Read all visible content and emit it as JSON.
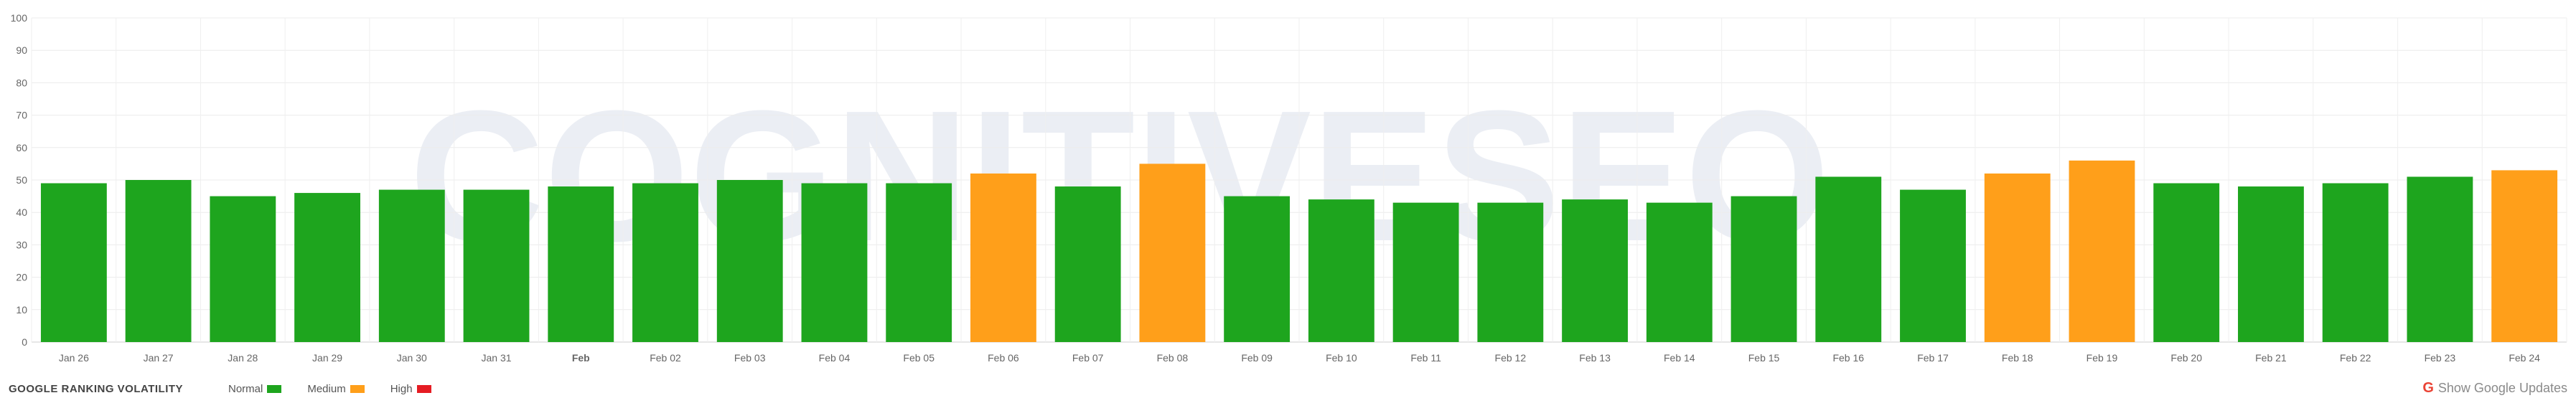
{
  "chart_data": {
    "type": "bar",
    "title": "GOOGLE RANKING VOLATILITY",
    "xlabel": "",
    "ylabel": "",
    "ylim": [
      0,
      100
    ],
    "yticks": [
      0,
      10,
      20,
      30,
      40,
      50,
      60,
      70,
      80,
      90,
      100
    ],
    "grid": true,
    "watermark": "COGNITIVESEO",
    "categories": [
      "Jan 26",
      "Jan 27",
      "Jan 28",
      "Jan 29",
      "Jan 30",
      "Jan 31",
      "Feb",
      "Feb 02",
      "Feb 03",
      "Feb 04",
      "Feb 05",
      "Feb 06",
      "Feb 07",
      "Feb 08",
      "Feb 09",
      "Feb 10",
      "Feb 11",
      "Feb 12",
      "Feb 13",
      "Feb 14",
      "Feb 15",
      "Feb 16",
      "Feb 17",
      "Feb 18",
      "Feb 19",
      "Feb 20",
      "Feb 21",
      "Feb 22",
      "Feb 23",
      "Feb 24"
    ],
    "values": [
      49,
      50,
      45,
      46,
      47,
      47,
      48,
      49,
      50,
      49,
      49,
      52,
      48,
      55,
      45,
      44,
      43,
      43,
      44,
      43,
      45,
      51,
      47,
      52,
      56,
      49,
      48,
      49,
      51,
      53
    ],
    "levels": [
      "Normal",
      "Normal",
      "Normal",
      "Normal",
      "Normal",
      "Normal",
      "Normal",
      "Normal",
      "Normal",
      "Normal",
      "Normal",
      "Medium",
      "Normal",
      "Medium",
      "Normal",
      "Normal",
      "Normal",
      "Normal",
      "Normal",
      "Normal",
      "Normal",
      "Normal",
      "Normal",
      "Medium",
      "Medium",
      "Normal",
      "Normal",
      "Normal",
      "Normal",
      "Medium"
    ],
    "legend": [
      {
        "name": "Normal",
        "color": "#1ea51e"
      },
      {
        "name": "Medium",
        "color": "#ff9f1a"
      },
      {
        "name": "High",
        "color": "#e51c23"
      }
    ],
    "legend_position": "bottom-left"
  },
  "footer": {
    "show_updates_label": "Show Google Updates",
    "google_icon": "google-g-icon"
  }
}
